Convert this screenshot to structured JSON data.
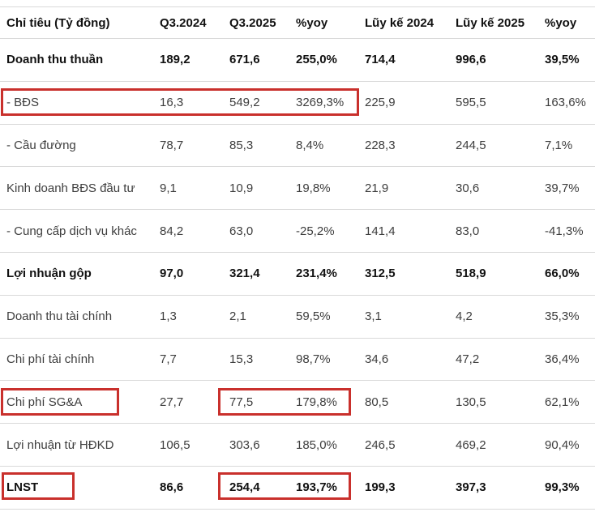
{
  "colors": {
    "highlight_border": "#c9302c",
    "row_divider": "#d9d9d9",
    "text_regular": "#3d3d3d",
    "text_bold": "#111111",
    "background": "#ffffff"
  },
  "chart_data": {
    "type": "table",
    "columns": [
      "Chỉ tiêu (Tỷ đồng)",
      "Q3.2024",
      "Q3.2025",
      "%yoy",
      "Lũy kế 2024",
      "Lũy kế 2025",
      "%yoy"
    ],
    "rows": [
      {
        "label": "Doanh thu thuần",
        "bold": true,
        "values": [
          "189,2",
          "671,6",
          "255,0%",
          "714,4",
          "996,6",
          "39,5%"
        ]
      },
      {
        "label": "- BĐS",
        "bold": false,
        "values": [
          "16,3",
          "549,2",
          "3269,3%",
          "225,9",
          "595,5",
          "163,6%"
        ]
      },
      {
        "label": "- Cầu đường",
        "bold": false,
        "values": [
          "78,7",
          "85,3",
          "8,4%",
          "228,3",
          "244,5",
          "7,1%"
        ]
      },
      {
        "label": "Kinh doanh BĐS đầu tư",
        "bold": false,
        "values": [
          "9,1",
          "10,9",
          "19,8%",
          "21,9",
          "30,6",
          "39,7%"
        ]
      },
      {
        "label": "- Cung cấp dịch vụ khác",
        "bold": false,
        "values": [
          "84,2",
          "63,0",
          "-25,2%",
          "141,4",
          "83,0",
          "-41,3%"
        ]
      },
      {
        "label": "Lợi nhuận gộp",
        "bold": true,
        "values": [
          "97,0",
          "321,4",
          "231,4%",
          "312,5",
          "518,9",
          "66,0%"
        ]
      },
      {
        "label": "Doanh thu tài chính",
        "bold": false,
        "values": [
          "1,3",
          "2,1",
          "59,5%",
          "3,1",
          "4,2",
          "35,3%"
        ]
      },
      {
        "label": "Chi phí tài chính",
        "bold": false,
        "values": [
          "7,7",
          "15,3",
          "98,7%",
          "34,6",
          "47,2",
          "36,4%"
        ]
      },
      {
        "label": "Chi phí SG&A",
        "bold": false,
        "values": [
          "27,7",
          "77,5",
          "179,8%",
          "80,5",
          "130,5",
          "62,1%"
        ]
      },
      {
        "label": "Lợi nhuận từ HĐKD",
        "bold": false,
        "values": [
          "106,5",
          "303,6",
          "185,0%",
          "246,5",
          "469,2",
          "90,4%"
        ]
      },
      {
        "label": "LNST",
        "bold": true,
        "values": [
          "86,6",
          "254,4",
          "193,7%",
          "199,3",
          "397,3",
          "99,3%"
        ]
      }
    ],
    "highlights": [
      {
        "name": "bds-row-highlight",
        "row": "- BĐS",
        "cells": [
          "label",
          "Q3.2024",
          "Q3.2025",
          "%yoy"
        ]
      },
      {
        "name": "sgna-label-highlight",
        "row": "Chi phí SG&A",
        "cells": [
          "label"
        ]
      },
      {
        "name": "sgna-q3-highlight",
        "row": "Chi phí SG&A",
        "cells": [
          "Q3.2025",
          "%yoy"
        ]
      },
      {
        "name": "lnst-label-highlight",
        "row": "LNST",
        "cells": [
          "label"
        ]
      },
      {
        "name": "lnst-q3-highlight",
        "row": "LNST",
        "cells": [
          "Q3.2025",
          "%yoy"
        ]
      }
    ],
    "layout": {
      "grid": "horizontal row dividers only",
      "column_alignment": "left"
    }
  }
}
